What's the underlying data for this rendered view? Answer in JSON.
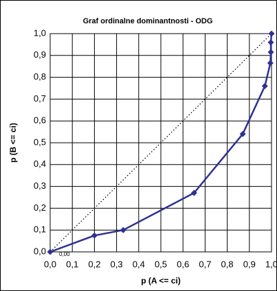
{
  "chart_data": {
    "type": "line",
    "title": "Graf ordinalne dominantnosti - ODG",
    "x_label": "p (A <= ci)",
    "y_label": "p (B <= ci)",
    "annotations": [
      "0,00"
    ],
    "x": [
      0,
      0.2,
      0.33,
      0.65,
      0.87,
      0.97,
      0.995,
      0.997,
      0.997,
      1.0
    ],
    "series": [
      {
        "name": "ODG",
        "color": "#2e3192",
        "values": [
          0,
          0.075,
          0.1,
          0.27,
          0.54,
          0.76,
          0.865,
          0.915,
          0.96,
          1.0
        ]
      }
    ],
    "xlim": [
      0,
      1
    ],
    "ylim": [
      0,
      1
    ],
    "xticks": [
      {
        "value": 0,
        "label": "0,0"
      },
      {
        "value": 0.1,
        "label": "0,1"
      },
      {
        "value": 0.2,
        "label": "0,2"
      },
      {
        "value": 0.3,
        "label": "0,3"
      },
      {
        "value": 0.4,
        "label": "0,4"
      },
      {
        "value": 0.5,
        "label": "0,5"
      },
      {
        "value": 0.6,
        "label": "0,6"
      },
      {
        "value": 0.7,
        "label": "0,7"
      },
      {
        "value": 0.8,
        "label": "0,8"
      },
      {
        "value": 0.9,
        "label": "0,9"
      },
      {
        "value": 1,
        "label": "1,0"
      }
    ],
    "yticks": [
      {
        "value": 0,
        "label": "0,0"
      },
      {
        "value": 0.1,
        "label": "0,1"
      },
      {
        "value": 0.2,
        "label": "0,2"
      },
      {
        "value": 0.3,
        "label": "0,3"
      },
      {
        "value": 0.4,
        "label": "0,4"
      },
      {
        "value": 0.5,
        "label": "0,5"
      },
      {
        "value": 0.6,
        "label": "0,6"
      },
      {
        "value": 0.7,
        "label": "0,7"
      },
      {
        "value": 0.8,
        "label": "0,8"
      },
      {
        "value": 0.9,
        "label": "0,9"
      },
      {
        "value": 1,
        "label": "1,0"
      }
    ],
    "grid": true,
    "diagonal": true,
    "marker": "diamond"
  }
}
